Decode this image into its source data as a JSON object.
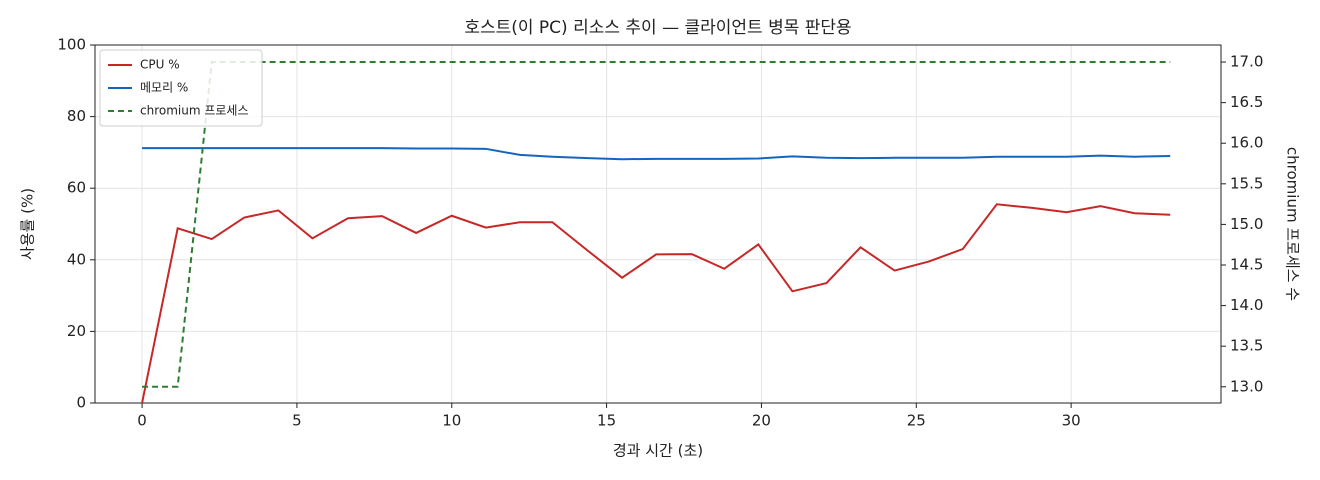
{
  "chart_data": {
    "type": "line",
    "title": "호스트(이 PC) 리소스 추이 — 클라이언트 병목 판단용",
    "xlabel": "경과 시간 (초)",
    "ylabel": "사용률 (%)",
    "y2label": "chromium 프로세스 수",
    "x": [
      0,
      1.15,
      2.25,
      3.3,
      4.4,
      5.5,
      6.65,
      7.75,
      8.85,
      10.0,
      11.1,
      12.2,
      13.25,
      14.4,
      15.5,
      16.6,
      17.75,
      18.8,
      19.9,
      21.0,
      22.1,
      23.2,
      24.3,
      25.4,
      26.5,
      27.6,
      28.75,
      29.85,
      30.95,
      32.05,
      33.2
    ],
    "series": [
      {
        "name": "CPU %",
        "color": "#c62828",
        "values": [
          0,
          48.8,
          45.8,
          51.8,
          53.8,
          46.0,
          51.6,
          52.2,
          47.5,
          52.3,
          49.0,
          50.5,
          50.5,
          42.5,
          35.0,
          41.5,
          41.6,
          37.5,
          44.3,
          31.2,
          33.5,
          43.5,
          37.0,
          39.5,
          43.0,
          55.5,
          54.5,
          53.3,
          55.0,
          53.0,
          52.6
        ]
      },
      {
        "name": "메모리 %",
        "color": "#1565c0",
        "values": [
          71.2,
          71.2,
          71.2,
          71.2,
          71.2,
          71.2,
          71.2,
          71.2,
          71.1,
          71.1,
          71.0,
          69.3,
          68.8,
          68.4,
          68.1,
          68.2,
          68.2,
          68.2,
          68.3,
          68.9,
          68.5,
          68.4,
          68.5,
          68.5,
          68.5,
          68.8,
          68.8,
          68.8,
          69.1,
          68.8,
          69.0
        ]
      },
      {
        "name": "chromium 프로세스",
        "color": "#2e7d32",
        "dashed": true,
        "axis": "y2",
        "values": [
          13,
          13,
          17,
          17,
          17,
          17,
          17,
          17,
          17,
          17,
          17,
          17,
          17,
          17,
          17,
          17,
          17,
          17,
          17,
          17,
          17,
          17,
          17,
          17,
          17,
          17,
          17,
          17,
          17,
          17,
          17
        ]
      }
    ],
    "xlim": [
      -1.52,
      34.84
    ],
    "xticks": [
      0,
      5,
      10,
      15,
      20,
      25,
      30
    ],
    "ylim": [
      0,
      100
    ],
    "yticks": [
      0,
      20,
      40,
      60,
      80,
      100
    ],
    "y2lim": [
      12.8,
      17.21
    ],
    "y2ticks": [
      {
        "value": 13,
        "label": "13.0"
      },
      13.5,
      {
        "value": 14,
        "label": "14.0"
      },
      14.5,
      {
        "value": 15,
        "label": "15.0"
      },
      15.5,
      {
        "value": 16,
        "label": "16.0"
      },
      16.5,
      {
        "value": 17,
        "label": "17.0"
      }
    ],
    "grid": true,
    "legend": "upper left"
  }
}
